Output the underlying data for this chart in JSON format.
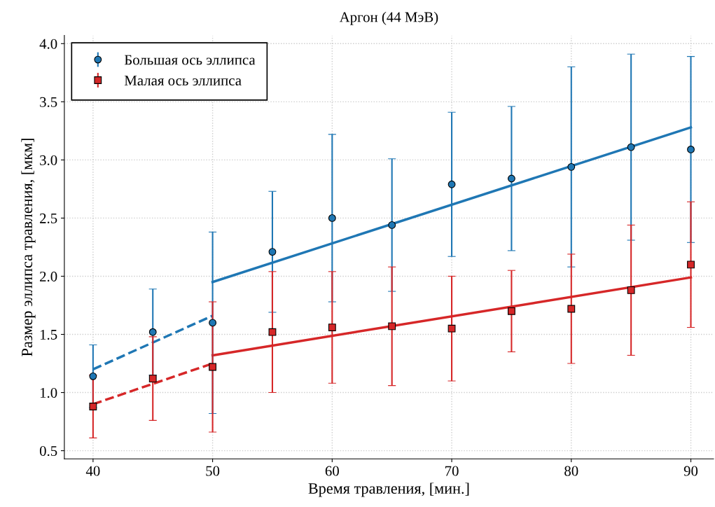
{
  "chart_data": {
    "type": "line",
    "title": "Аргон (44 МэВ)",
    "xlabel": "Время травления, [мин.]",
    "ylabel": "Размер эллипса травления, [мкм]",
    "x": [
      40,
      45,
      50,
      55,
      60,
      65,
      70,
      75,
      80,
      85,
      90
    ],
    "series": [
      {
        "name": "Большая ось эллипса",
        "type": "scatter",
        "marker": "circle",
        "color": "#1f77b4",
        "values": [
          1.14,
          1.52,
          1.6,
          2.21,
          2.5,
          2.44,
          2.79,
          2.84,
          2.94,
          3.11,
          3.09
        ],
        "errors": [
          0.27,
          0.37,
          0.78,
          0.52,
          0.72,
          0.57,
          0.62,
          0.62,
          0.86,
          0.8,
          0.8
        ]
      },
      {
        "name": "Малая ось эллипса",
        "type": "scatter",
        "marker": "square",
        "color": "#d62728",
        "values": [
          0.88,
          1.12,
          1.22,
          1.52,
          1.56,
          1.57,
          1.55,
          1.7,
          1.72,
          1.88,
          2.1
        ],
        "errors": [
          0.27,
          0.36,
          0.56,
          0.52,
          0.48,
          0.51,
          0.45,
          0.35,
          0.47,
          0.56,
          0.54
        ]
      },
      {
        "line_style": "dashed",
        "marker": "none",
        "color": "#1f77b4",
        "x": [
          40,
          50
        ],
        "values": [
          1.2,
          1.66
        ]
      },
      {
        "line_style": "solid",
        "marker": "none",
        "color": "#1f77b4",
        "x": [
          50,
          90
        ],
        "values": [
          1.95,
          3.28
        ]
      },
      {
        "line_style": "dashed",
        "marker": "none",
        "color": "#d62728",
        "x": [
          40,
          50
        ],
        "values": [
          0.9,
          1.25
        ]
      },
      {
        "line_style": "solid",
        "marker": "none",
        "color": "#d62728",
        "x": [
          50,
          90
        ],
        "values": [
          1.32,
          1.99
        ]
      }
    ],
    "xlim": [
      37.6,
      91.9
    ],
    "xticks": [
      40,
      50,
      60,
      70,
      80,
      90
    ],
    "ylim": [
      0.43,
      4.07
    ],
    "yticks": [
      {
        "value": 0.5,
        "label": "0.5"
      },
      {
        "value": 1.0,
        "label": "1.0"
      },
      {
        "value": 1.5,
        "label": "1.5"
      },
      {
        "value": 2.0,
        "label": "2.0"
      },
      {
        "value": 2.5,
        "label": "2.5"
      },
      {
        "value": 3.0,
        "label": "3.0"
      },
      {
        "value": 3.5,
        "label": "3.5"
      },
      {
        "value": 4.0,
        "label": "4.0"
      }
    ],
    "grid": true,
    "legend": "top left"
  }
}
